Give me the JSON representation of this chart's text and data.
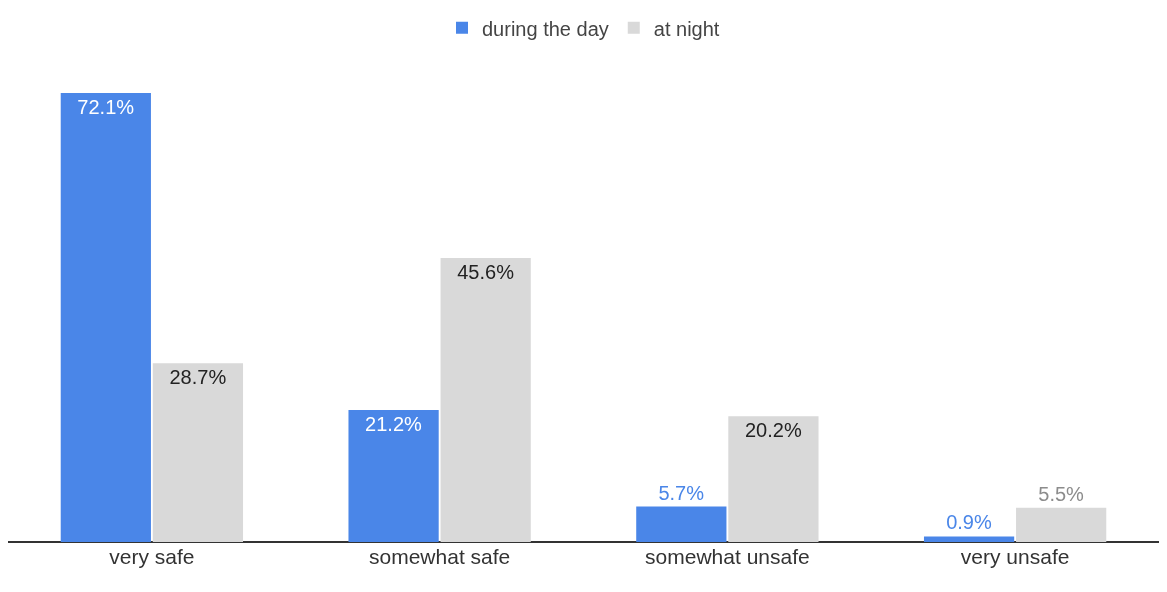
{
  "chart_data": {
    "type": "bar",
    "categories": [
      "very safe",
      "somewhat safe",
      "somewhat unsafe",
      "very unsafe"
    ],
    "series": [
      {
        "name": "during the day",
        "color": "#4a86e8",
        "values": [
          72.1,
          21.2,
          5.7,
          0.9
        ],
        "value_labels": [
          "72.1%",
          "21.2%",
          "5.7%",
          "0.9%"
        ]
      },
      {
        "name": "at night",
        "color": "#d9d9d9",
        "values": [
          28.7,
          45.6,
          20.2,
          5.5
        ],
        "value_labels": [
          "28.7%",
          "45.6%",
          "20.2%",
          "5.5%"
        ]
      }
    ],
    "legend": "top"
  }
}
